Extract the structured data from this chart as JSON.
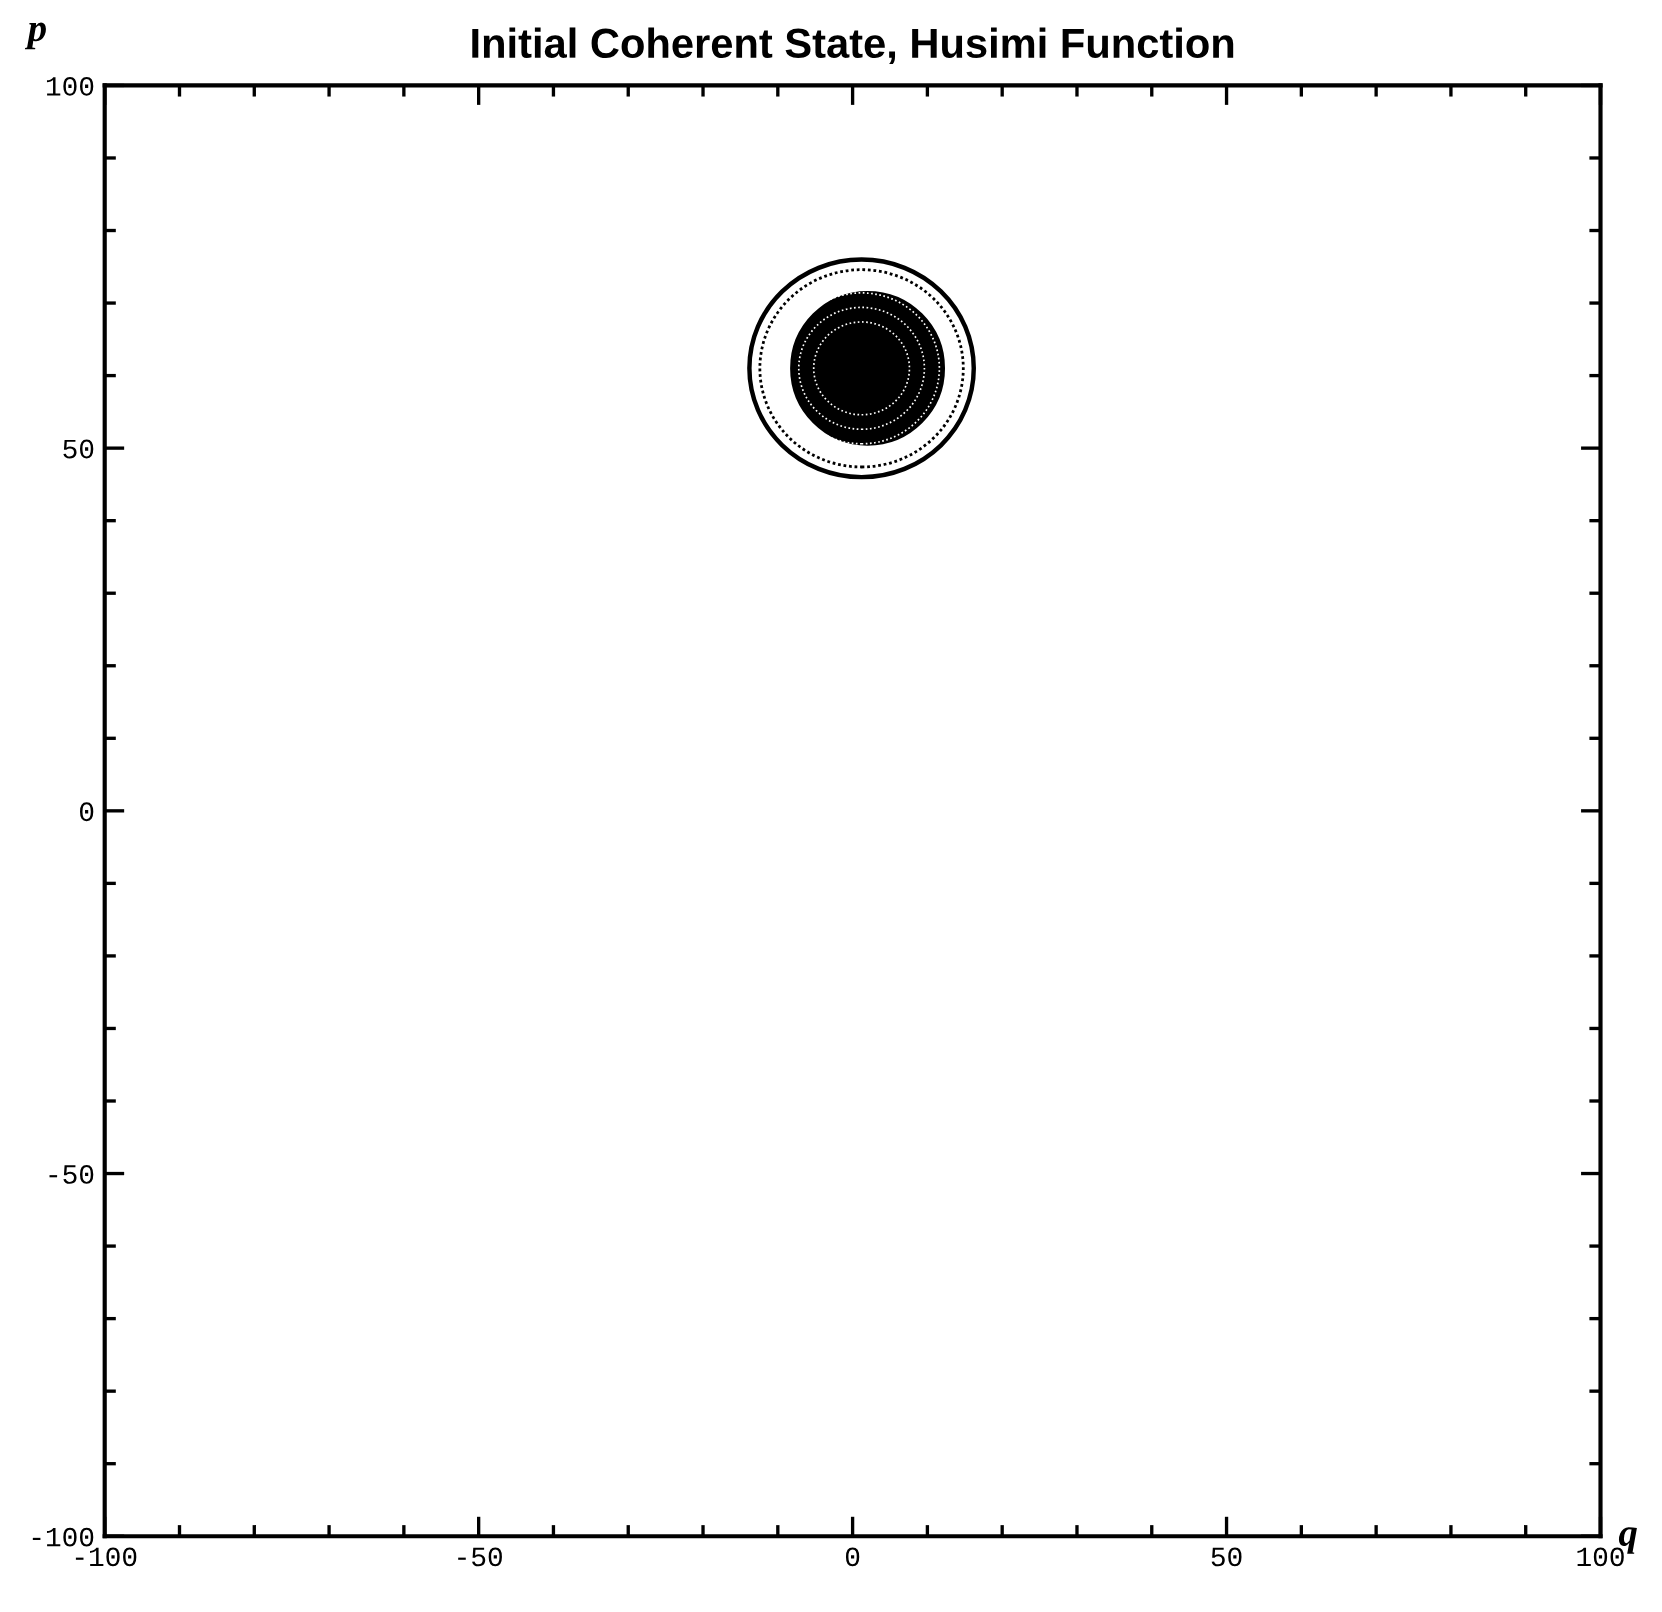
{
  "chart_data": {
    "type": "scatter",
    "marker": "circle",
    "series": [
      {
        "color": "#000000",
        "x": [
          2
        ],
        "values": [
          61
        ]
      }
    ],
    "title": "Initial Coherent State, Husimi Function",
    "xlabel": "q",
    "ylabel": "p",
    "xlim": [
      -100,
      100
    ],
    "ylim": [
      -100,
      100
    ],
    "xticks": [
      -100,
      {
        "value": -90,
        "label": null
      },
      {
        "value": -80,
        "label": null
      },
      {
        "value": -70,
        "label": null
      },
      {
        "value": -60,
        "label": null
      },
      -50,
      {
        "value": -40,
        "label": null
      },
      {
        "value": -30,
        "label": null
      },
      {
        "value": -20,
        "label": null
      },
      {
        "value": -10,
        "label": null
      },
      0,
      {
        "value": 10,
        "label": null
      },
      {
        "value": 20,
        "label": null
      },
      {
        "value": 30,
        "label": null
      },
      {
        "value": 40,
        "label": null
      },
      50,
      {
        "value": 60,
        "label": null
      },
      {
        "value": 70,
        "label": null
      },
      {
        "value": 80,
        "label": null
      },
      {
        "value": 90,
        "label": null
      },
      100
    ],
    "yticks": [
      -100,
      {
        "value": -90,
        "label": null
      },
      {
        "value": -80,
        "label": null
      },
      {
        "value": -70,
        "label": null
      },
      {
        "value": -60,
        "label": null
      },
      -50,
      {
        "value": -40,
        "label": null
      },
      {
        "value": -30,
        "label": null
      },
      {
        "value": -20,
        "label": null
      },
      {
        "value": -10,
        "label": null
      },
      0,
      {
        "value": 10,
        "label": null
      },
      {
        "value": 20,
        "label": null
      },
      {
        "value": 30,
        "label": null
      },
      {
        "value": 40,
        "label": null
      },
      50,
      {
        "value": 60,
        "label": null
      },
      {
        "value": 70,
        "label": null
      },
      {
        "value": 80,
        "label": null
      },
      {
        "value": 90,
        "label": null
      },
      100
    ]
  }
}
